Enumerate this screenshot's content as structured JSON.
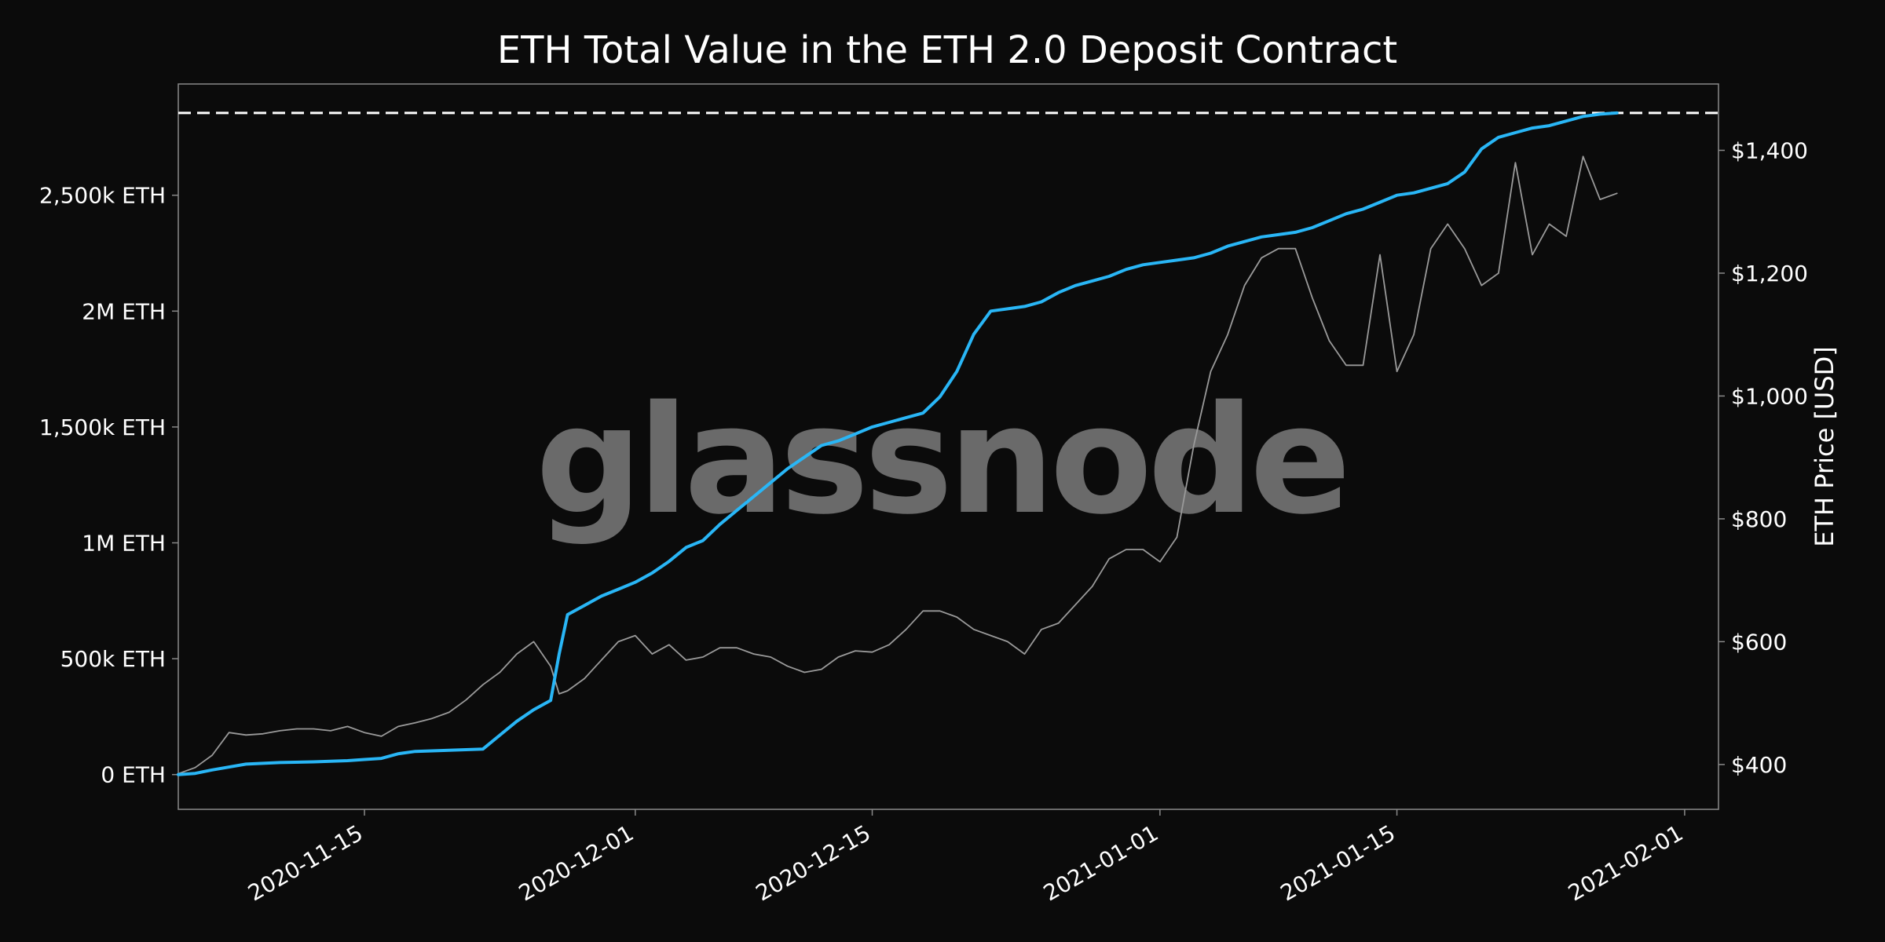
{
  "watermark": "glassnode",
  "colors": {
    "background": "#0b0b0b",
    "plot_background": "#0b0b0b",
    "frame": "#8a8a8a",
    "text": "#ffffff",
    "deposit_series": "#29b6f6",
    "price_series": "#9a9a9a",
    "reference_line": "#ffffff"
  },
  "chart_data": {
    "type": "line",
    "title": "ETH Total Value in the ETH 2.0 Deposit Contract",
    "xlabel": "",
    "ylabel_left": "",
    "ylabel_right": "ETH Price [USD]",
    "grid": false,
    "legend": "none",
    "x_range": [
      "2020-11-04",
      "2021-02-03"
    ],
    "x_ticks": [
      "2020-11-15",
      "2020-12-01",
      "2020-12-15",
      "2021-01-01",
      "2021-01-15",
      "2021-02-01"
    ],
    "y_left_range": [
      -150000,
      2980000
    ],
    "y_left_ticks": [
      {
        "value": 0,
        "label": "0 ETH"
      },
      {
        "value": 500000,
        "label": "500k ETH"
      },
      {
        "value": 1000000,
        "label": "1M ETH"
      },
      {
        "value": 1500000,
        "label": "1,500k ETH"
      },
      {
        "value": 2000000,
        "label": "2M ETH"
      },
      {
        "value": 2500000,
        "label": "2,500k ETH"
      }
    ],
    "y_right_range": [
      327,
      1508
    ],
    "y_right_ticks": [
      {
        "value": 400,
        "label": "$400"
      },
      {
        "value": 600,
        "label": "$600"
      },
      {
        "value": 800,
        "label": "$800"
      },
      {
        "value": 1000,
        "label": "$1,000"
      },
      {
        "value": 1200,
        "label": "$1,200"
      },
      {
        "value": 1400,
        "label": "$1,400"
      }
    ],
    "reference_line": {
      "axis": "left",
      "value": 2855000,
      "style": "dashed"
    },
    "series": [
      {
        "axis": "left",
        "x": [
          "2020-11-04",
          "2020-11-05",
          "2020-11-06",
          "2020-11-08",
          "2020-11-10",
          "2020-11-12",
          "2020-11-14",
          "2020-11-15",
          "2020-11-16",
          "2020-11-17",
          "2020-11-18",
          "2020-11-20",
          "2020-11-22",
          "2020-11-23",
          "2020-11-24",
          "2020-11-25",
          "2020-11-26",
          "2020-11-26T12:00",
          "2020-11-27",
          "2020-11-28",
          "2020-11-29",
          "2020-11-30",
          "2020-12-01",
          "2020-12-02",
          "2020-12-03",
          "2020-12-04",
          "2020-12-05",
          "2020-12-06",
          "2020-12-07",
          "2020-12-08",
          "2020-12-09",
          "2020-12-10",
          "2020-12-11",
          "2020-12-12",
          "2020-12-13",
          "2020-12-14",
          "2020-12-15",
          "2020-12-16",
          "2020-12-17",
          "2020-12-18",
          "2020-12-19",
          "2020-12-20",
          "2020-12-21",
          "2020-12-22",
          "2020-12-23",
          "2020-12-24",
          "2020-12-25",
          "2020-12-26",
          "2020-12-27",
          "2020-12-28",
          "2020-12-29",
          "2020-12-30",
          "2020-12-31",
          "2021-01-01",
          "2021-01-02",
          "2021-01-03",
          "2021-01-04",
          "2021-01-05",
          "2021-01-06",
          "2021-01-07",
          "2021-01-08",
          "2021-01-09",
          "2021-01-10",
          "2021-01-11",
          "2021-01-12",
          "2021-01-13",
          "2021-01-14",
          "2021-01-15",
          "2021-01-16",
          "2021-01-17",
          "2021-01-18",
          "2021-01-19",
          "2021-01-20",
          "2021-01-21",
          "2021-01-22",
          "2021-01-23",
          "2021-01-24",
          "2021-01-25",
          "2021-01-26",
          "2021-01-27",
          "2021-01-28"
        ],
        "values": [
          0,
          5000,
          20000,
          45000,
          52000,
          55000,
          60000,
          65000,
          70000,
          90000,
          100000,
          105000,
          110000,
          170000,
          230000,
          280000,
          320000,
          520000,
          690000,
          730000,
          770000,
          800000,
          830000,
          870000,
          920000,
          980000,
          1010000,
          1080000,
          1140000,
          1200000,
          1260000,
          1320000,
          1370000,
          1420000,
          1440000,
          1470000,
          1500000,
          1520000,
          1540000,
          1560000,
          1630000,
          1740000,
          1900000,
          2000000,
          2010000,
          2020000,
          2040000,
          2080000,
          2110000,
          2130000,
          2150000,
          2180000,
          2200000,
          2210000,
          2220000,
          2230000,
          2250000,
          2280000,
          2300000,
          2320000,
          2330000,
          2340000,
          2360000,
          2390000,
          2420000,
          2440000,
          2470000,
          2500000,
          2510000,
          2530000,
          2550000,
          2600000,
          2700000,
          2750000,
          2770000,
          2790000,
          2800000,
          2820000,
          2840000,
          2850000,
          2855000
        ]
      },
      {
        "axis": "right",
        "x": [
          "2020-11-04",
          "2020-11-05",
          "2020-11-06",
          "2020-11-07",
          "2020-11-08",
          "2020-11-09",
          "2020-11-10",
          "2020-11-11",
          "2020-11-12",
          "2020-11-13",
          "2020-11-14",
          "2020-11-15",
          "2020-11-16",
          "2020-11-17",
          "2020-11-18",
          "2020-11-19",
          "2020-11-20",
          "2020-11-21",
          "2020-11-22",
          "2020-11-23",
          "2020-11-24",
          "2020-11-25",
          "2020-11-26",
          "2020-11-26T12:00",
          "2020-11-27",
          "2020-11-28",
          "2020-11-29",
          "2020-11-30",
          "2020-12-01",
          "2020-12-02",
          "2020-12-03",
          "2020-12-04",
          "2020-12-05",
          "2020-12-06",
          "2020-12-07",
          "2020-12-08",
          "2020-12-09",
          "2020-12-10",
          "2020-12-11",
          "2020-12-12",
          "2020-12-13",
          "2020-12-14",
          "2020-12-15",
          "2020-12-16",
          "2020-12-17",
          "2020-12-18",
          "2020-12-19",
          "2020-12-20",
          "2020-12-21",
          "2020-12-22",
          "2020-12-23",
          "2020-12-24",
          "2020-12-25",
          "2020-12-26",
          "2020-12-27",
          "2020-12-28",
          "2020-12-29",
          "2020-12-30",
          "2020-12-31",
          "2021-01-01",
          "2021-01-02",
          "2021-01-03",
          "2021-01-04",
          "2021-01-05",
          "2021-01-06",
          "2021-01-07",
          "2021-01-08",
          "2021-01-09",
          "2021-01-10",
          "2021-01-11",
          "2021-01-12",
          "2021-01-13",
          "2021-01-14",
          "2021-01-15",
          "2021-01-16",
          "2021-01-17",
          "2021-01-18",
          "2021-01-19",
          "2021-01-20",
          "2021-01-21",
          "2021-01-22",
          "2021-01-23",
          "2021-01-24",
          "2021-01-25",
          "2021-01-26",
          "2021-01-27",
          "2021-01-28"
        ],
        "values": [
          385,
          395,
          415,
          452,
          448,
          450,
          455,
          458,
          458,
          455,
          462,
          452,
          446,
          462,
          468,
          475,
          485,
          505,
          530,
          550,
          580,
          600,
          560,
          515,
          520,
          540,
          570,
          600,
          610,
          580,
          595,
          570,
          575,
          590,
          590,
          580,
          575,
          560,
          550,
          555,
          575,
          585,
          583,
          595,
          620,
          650,
          650,
          640,
          620,
          610,
          600,
          580,
          620,
          630,
          660,
          690,
          735,
          750,
          750,
          730,
          770,
          920,
          1040,
          1100,
          1180,
          1225,
          1240,
          1240,
          1160,
          1090,
          1050,
          1050,
          1230,
          1040,
          1100,
          1240,
          1280,
          1240,
          1180,
          1200,
          1380,
          1230,
          1280,
          1260,
          1390,
          1320,
          1330
        ]
      }
    ]
  }
}
